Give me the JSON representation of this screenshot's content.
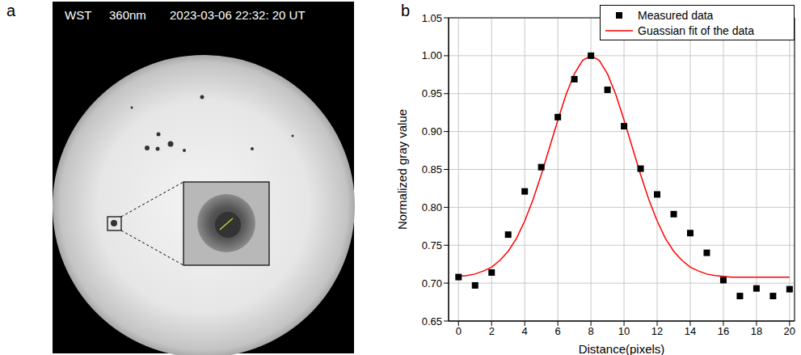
{
  "image_panel": {
    "label": "a",
    "header": [
      "WST",
      "360nm",
      "2023-03-06 22:32: 20 UT"
    ]
  },
  "chart_data": {
    "label": "b",
    "type": "scatter",
    "x_label": "Distance(pixels)",
    "y_label": "Normalized gray value",
    "xlim": [
      -0.6,
      20.3
    ],
    "xticks": [
      0,
      2,
      4,
      6,
      8,
      10,
      12,
      14,
      16,
      18,
      20
    ],
    "ylim": [
      0.65,
      1.05
    ],
    "yticks": [
      0.65,
      {
        "value": 0.7,
        "label": "0.70"
      },
      0.75,
      {
        "value": 0.8,
        "label": "0.80"
      },
      0.85,
      {
        "value": 0.9,
        "label": "0.90"
      },
      0.95,
      {
        "value": 1,
        "label": "1.00"
      },
      1.05
    ],
    "grid": true,
    "legend": "upper right",
    "series": [
      {
        "name": "Measured data",
        "type": "scatter",
        "color": "#000000",
        "marker": "square",
        "x": [
          0,
          1,
          2,
          3,
          4,
          5,
          6,
          7,
          8,
          9,
          10,
          11,
          12,
          13,
          14,
          15,
          16,
          17,
          18,
          19,
          20
        ],
        "values": [
          0.708,
          0.697,
          0.714,
          0.764,
          0.821,
          0.853,
          0.919,
          0.969,
          1.0,
          0.955,
          0.907,
          0.851,
          0.817,
          0.791,
          0.766,
          0.74,
          0.704,
          0.683,
          0.693,
          0.683,
          0.692
        ]
      },
      {
        "name": "Guassian fit of the data",
        "type": "line",
        "color": "#ff0000",
        "marker": "none",
        "line_style": "solid",
        "x": [
          0,
          0.5,
          1,
          1.5,
          2,
          2.5,
          3,
          3.5,
          4,
          4.5,
          5,
          5.5,
          6,
          6.5,
          7,
          7.5,
          8,
          8.5,
          9,
          9.5,
          10,
          10.5,
          11,
          11.5,
          12,
          12.5,
          13,
          13.5,
          14,
          14.5,
          15,
          15.5,
          16,
          16.5,
          17,
          17.5,
          18,
          18.5,
          19,
          19.5,
          20
        ],
        "values": [
          0.709,
          0.71,
          0.712,
          0.716,
          0.721,
          0.73,
          0.742,
          0.759,
          0.782,
          0.81,
          0.843,
          0.879,
          0.915,
          0.949,
          0.976,
          0.994,
          1.0,
          0.994,
          0.976,
          0.949,
          0.915,
          0.879,
          0.843,
          0.81,
          0.782,
          0.759,
          0.742,
          0.73,
          0.721,
          0.716,
          0.712,
          0.71,
          0.709,
          0.708,
          0.708,
          0.708,
          0.708,
          0.708,
          0.708,
          0.708,
          0.708
        ]
      }
    ]
  }
}
